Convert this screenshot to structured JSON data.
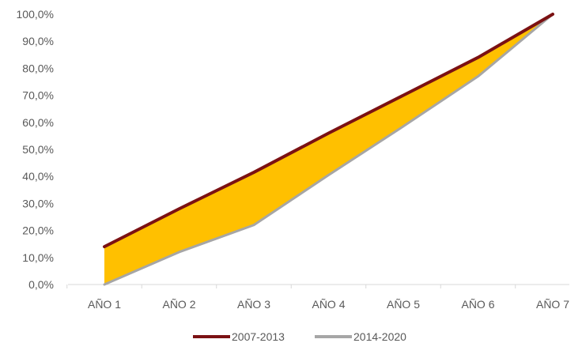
{
  "chart_data": {
    "type": "area",
    "categories": [
      "AÑO 1",
      "AÑO 2",
      "AÑO 3",
      "AÑO 4",
      "AÑO 5",
      "AÑO 6",
      "AÑO 7"
    ],
    "series": [
      {
        "name": "2007-2013",
        "values": [
          14,
          28,
          41.5,
          56,
          70,
          84,
          100
        ],
        "color": "#7b1113"
      },
      {
        "name": "2014-2020",
        "values": [
          0,
          12,
          22,
          40.5,
          58.5,
          77,
          100
        ],
        "color": "#a6a6a6"
      }
    ],
    "fill_between_color": "#ffc000",
    "ylim": [
      0,
      100
    ],
    "yticks": [
      "0,0%",
      "10,0%",
      "20,0%",
      "30,0%",
      "40,0%",
      "50,0%",
      "60,0%",
      "70,0%",
      "80,0%",
      "90,0%",
      "100,0%"
    ],
    "ytick_values": [
      0,
      10,
      20,
      30,
      40,
      50,
      60,
      70,
      80,
      90,
      100
    ],
    "grid": false,
    "legend_position": "bottom",
    "title": "",
    "xlabel": "",
    "ylabel": ""
  }
}
